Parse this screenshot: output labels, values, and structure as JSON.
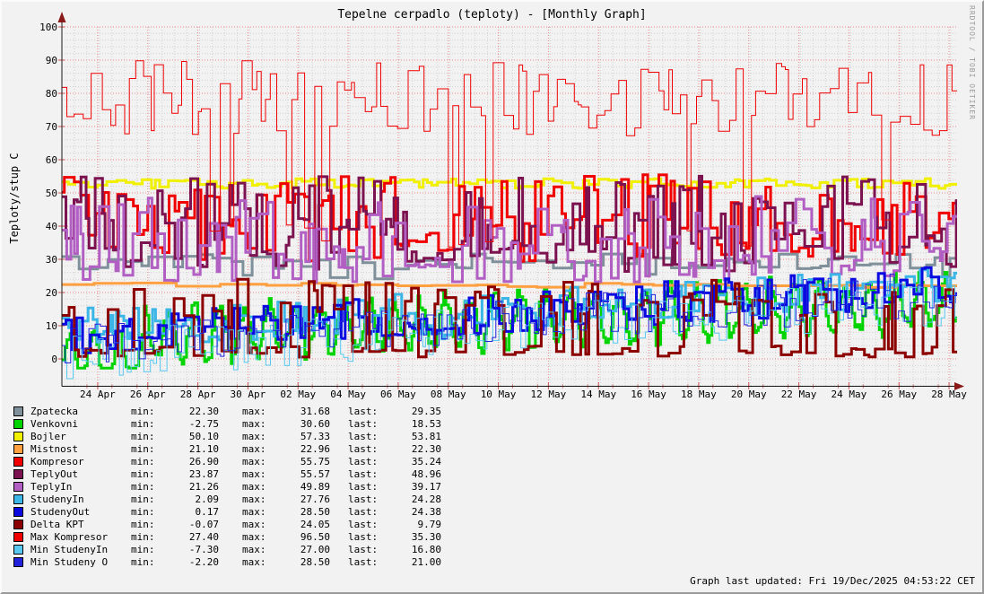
{
  "title": "Tepelne cerpadlo (teploty) - [Monthly Graph]",
  "watermark": "RRDTOOL / TOBI OETIKER",
  "footer": {
    "updated_text": "Graph last updated: Fri 19/Dec/2025 04:53:22 CET"
  },
  "y_axis": {
    "label": "Teploty/stup C"
  },
  "legend": {
    "field_labels": {
      "min": "min:",
      "max": "max:",
      "last": "last:"
    }
  },
  "chart_data": {
    "type": "line",
    "title": "Tepelne cerpadlo (teploty) - [Monthly Graph]",
    "xlabel": "",
    "ylabel": "Teploty/stup C",
    "ylim": [
      -8.1,
      100
    ],
    "grid": true,
    "legend_position": "bottom-left",
    "y_tick_labels": [
      "0",
      "10",
      "20",
      "30",
      "40",
      "50",
      "60",
      "70",
      "80",
      "90",
      "100"
    ],
    "y_major_step": 10,
    "y_minor_step": 2,
    "x_tick_labels": [
      "24 Apr",
      "26 Apr",
      "28 Apr",
      "30 Apr",
      "02 May",
      "04 May",
      "06 May",
      "08 May",
      "10 May",
      "12 May",
      "14 May",
      "16 May",
      "18 May",
      "20 May",
      "22 May",
      "24 May",
      "26 May",
      "28 May"
    ],
    "x_days_span": 35.75,
    "x_first_label_offset_days": 1.43,
    "x_label_interval_days": 2,
    "x_minor_step_days": 0.5,
    "colors": {
      "major_grid": "#e98a8a",
      "minor_grid": "#d2d2d2",
      "axis": "#1a1a1a",
      "arrow": "#8b1a1a"
    },
    "series": [
      {
        "name": "Zpatecka",
        "color": "#7f909b",
        "width": 3,
        "min": "22.30",
        "max": "31.68",
        "last": "29.35",
        "wave": {
          "type": "step",
          "seg": [
            0.25,
            0.8
          ],
          "lo": 27,
          "hi": 31.6,
          "dipP": 0.06,
          "dip": [
            23.5,
            26
          ],
          "clamp": [
            22.3,
            31.68
          ]
        }
      },
      {
        "name": "Venkovni",
        "color": "#00d400",
        "width": 3,
        "min": "-2.75",
        "max": "30.60",
        "last": "18.53",
        "wave": {
          "type": "diurnal",
          "seg": [
            0.07,
            0.13
          ],
          "base": [
            6,
            17
          ],
          "amp": 7.5,
          "noise": 2.5,
          "early": [
            3.2,
            -7
          ],
          "clamp": [
            -2.75,
            30.6
          ]
        }
      },
      {
        "name": "Bojler",
        "color": "#f0f000",
        "width": 3,
        "min": "50.10",
        "max": "57.33",
        "last": "53.81",
        "wave": {
          "type": "step",
          "seg": [
            0.15,
            0.4
          ],
          "lo": 51.3,
          "hi": 54.3,
          "clamp": [
            50.1,
            57.33
          ]
        }
      },
      {
        "name": "Mistnost",
        "color": "#ffa040",
        "width": 3,
        "min": "21.10",
        "max": "22.96",
        "last": "22.30",
        "wave": {
          "type": "step",
          "seg": [
            0.8,
            2
          ],
          "lo": 21.4,
          "hi": 22.9,
          "clamp": [
            21.1,
            22.96
          ]
        }
      },
      {
        "name": "Kompresor",
        "color": "#f00000",
        "width": 3,
        "min": "26.90",
        "max": "55.75",
        "last": "35.24",
        "wave": {
          "type": "step",
          "seg": [
            0.09,
            0.4
          ],
          "lo": 29,
          "hi": 55.7,
          "quiet": [
            13.7,
            15.5,
            35,
            3
          ],
          "clamp": [
            26.9,
            55.75
          ]
        }
      },
      {
        "name": "TeplyOut",
        "color": "#7c1250",
        "width": 3,
        "min": "23.87",
        "max": "55.57",
        "last": "48.96",
        "wave": {
          "type": "step",
          "seg": [
            0.09,
            0.4
          ],
          "lo": 26,
          "hi": 55.5,
          "quiet": [
            13.7,
            15.5,
            31,
            2
          ],
          "clamp": [
            23.87,
            55.57
          ]
        }
      },
      {
        "name": "TeplyIn",
        "color": "#b25fc4",
        "width": 3,
        "min": "21.26",
        "max": "49.89",
        "last": "39.17",
        "wave": {
          "type": "step",
          "seg": [
            0.09,
            0.4
          ],
          "lo": 23,
          "hi": 49.8,
          "quiet": [
            13.7,
            15.5,
            29,
            2
          ],
          "clamp": [
            21.26,
            49.89
          ]
        }
      },
      {
        "name": "StudenyIn",
        "color": "#3cb6e6",
        "width": 3,
        "min": "2.09",
        "max": "27.76",
        "last": "24.28",
        "wave": {
          "type": "band",
          "seg": [
            0.1,
            0.35
          ],
          "lo": [
            3,
            16
          ],
          "hi": [
            15,
            27.7
          ],
          "quiet": [
            13.7,
            15.5,
            10,
            4
          ],
          "clamp": [
            2.09,
            27.76
          ]
        }
      },
      {
        "name": "StudenyOut",
        "color": "#0a0ae0",
        "width": 3,
        "min": "0.17",
        "max": "28.50",
        "last": "24.38",
        "wave": {
          "type": "band",
          "seg": [
            0.1,
            0.35
          ],
          "lo": [
            1,
            15
          ],
          "hi": [
            13,
            28.4
          ],
          "quiet": [
            13.7,
            15.5,
            8,
            5
          ],
          "clamp": [
            0.17,
            28.5
          ]
        }
      },
      {
        "name": "Delta KPT",
        "color": "#8c0000",
        "width": 3,
        "min": "-0.07",
        "max": "24.05",
        "last": "9.79",
        "wave": {
          "type": "bimodal",
          "seg": [
            0.12,
            0.45
          ],
          "low": [
            0.5,
            4
          ],
          "high": [
            13,
            24
          ],
          "lowUntil": 4,
          "clamp": [
            -0.07,
            24.05
          ]
        }
      },
      {
        "name": "Max Kompresor",
        "color": "#f00000",
        "width": 1,
        "min": "27.40",
        "max": "96.50",
        "last": "35.30",
        "wave": {
          "type": "step",
          "seg": [
            0.12,
            0.45
          ],
          "lo": 67,
          "hi": 90,
          "dipP": 0.09,
          "dip": [
            33,
            42
          ],
          "spike": [
            28.1,
            0.12,
            96.5
          ],
          "clamp": [
            27.4,
            96.5
          ]
        }
      },
      {
        "name": "Min StudenyIn",
        "color": "#58c8f0",
        "width": 1,
        "min": "-7.30",
        "max": "27.00",
        "last": "16.80",
        "wave": {
          "type": "band",
          "seg": [
            0.1,
            0.3
          ],
          "lo": [
            -6.5,
            10
          ],
          "hi": [
            8,
            25
          ],
          "clamp": [
            -7.3,
            27
          ]
        }
      },
      {
        "name": "Min Studeny O",
        "color": "#2222dd",
        "width": 1,
        "min": "-2.20",
        "max": "28.50",
        "last": "21.00",
        "wave": {
          "type": "band",
          "seg": [
            0.1,
            0.3
          ],
          "lo": [
            -2,
            12
          ],
          "hi": [
            10,
            27
          ],
          "clamp": [
            -2.2,
            28.5
          ]
        }
      }
    ]
  }
}
